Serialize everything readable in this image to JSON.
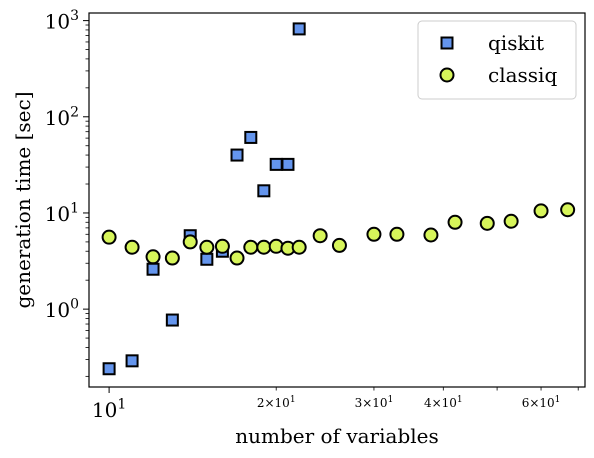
{
  "chart_data": {
    "type": "scatter",
    "xlabel": "number of variables",
    "ylabel": "generation time [sec]",
    "xscale": "log",
    "yscale": "log",
    "xlim": [
      9.2,
      72
    ],
    "ylim": [
      0.155,
      1200
    ],
    "legend_position": "top-right",
    "x_ticks_major": [
      {
        "value": 10,
        "base": "10",
        "exp": "1"
      }
    ],
    "x_ticks_minor": [
      {
        "value": 20,
        "mantissa": "2",
        "base": "10",
        "exp": "1"
      },
      {
        "value": 30,
        "mantissa": "3",
        "base": "10",
        "exp": "1"
      },
      {
        "value": 40,
        "mantissa": "4",
        "base": "10",
        "exp": "1"
      },
      {
        "value": 60,
        "mantissa": "6",
        "base": "10",
        "exp": "1"
      }
    ],
    "y_ticks_major": [
      {
        "value": 1,
        "base": "10",
        "exp": "0"
      },
      {
        "value": 10,
        "base": "10",
        "exp": "1"
      },
      {
        "value": 100,
        "base": "10",
        "exp": "2"
      },
      {
        "value": 1000,
        "base": "10",
        "exp": "3"
      }
    ],
    "series": [
      {
        "name": "qiskit",
        "marker": "square",
        "color": "#6495ed",
        "points": [
          {
            "x": 10,
            "y": 0.24
          },
          {
            "x": 11,
            "y": 0.29
          },
          {
            "x": 12,
            "y": 2.6
          },
          {
            "x": 13,
            "y": 0.77
          },
          {
            "x": 14,
            "y": 5.8
          },
          {
            "x": 15,
            "y": 3.3
          },
          {
            "x": 16,
            "y": 4.0
          },
          {
            "x": 17,
            "y": 40
          },
          {
            "x": 18,
            "y": 61
          },
          {
            "x": 19,
            "y": 17
          },
          {
            "x": 20,
            "y": 32
          },
          {
            "x": 21,
            "y": 32
          },
          {
            "x": 22,
            "y": 820
          }
        ]
      },
      {
        "name": "classiq",
        "marker": "circle",
        "color": "#d7f55a",
        "points": [
          {
            "x": 10,
            "y": 5.6
          },
          {
            "x": 11,
            "y": 4.4
          },
          {
            "x": 12,
            "y": 3.5
          },
          {
            "x": 13,
            "y": 3.4
          },
          {
            "x": 14,
            "y": 5.0
          },
          {
            "x": 15,
            "y": 4.4
          },
          {
            "x": 16,
            "y": 4.5
          },
          {
            "x": 17,
            "y": 3.4
          },
          {
            "x": 18,
            "y": 4.4
          },
          {
            "x": 19,
            "y": 4.4
          },
          {
            "x": 20,
            "y": 4.5
          },
          {
            "x": 21,
            "y": 4.3
          },
          {
            "x": 22,
            "y": 4.4
          },
          {
            "x": 24,
            "y": 5.8
          },
          {
            "x": 26,
            "y": 4.6
          },
          {
            "x": 30,
            "y": 6.0
          },
          {
            "x": 33,
            "y": 6.0
          },
          {
            "x": 38,
            "y": 5.9
          },
          {
            "x": 42,
            "y": 8.0
          },
          {
            "x": 48,
            "y": 7.8
          },
          {
            "x": 53,
            "y": 8.2
          },
          {
            "x": 60,
            "y": 10.5
          },
          {
            "x": 67,
            "y": 10.8
          }
        ]
      }
    ]
  }
}
